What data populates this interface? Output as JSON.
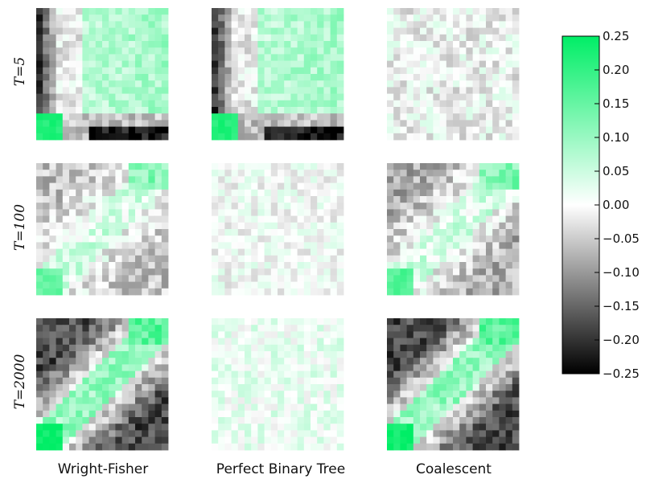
{
  "chart_data": {
    "type": "heatmap",
    "grid_size": 20,
    "row_labels": [
      "T=5",
      "T=100",
      "T=2000"
    ],
    "column_labels": [
      "Wright-Fisher",
      "Perfect Binary Tree",
      "Coalescent"
    ],
    "colorbar": {
      "min": -0.25,
      "max": 0.25,
      "ticks": [
        0.25,
        0.2,
        0.15,
        0.1,
        0.05,
        0.0,
        -0.05,
        -0.1,
        -0.15,
        -0.2,
        -0.25
      ],
      "tick_labels": [
        "0.25",
        "0.20",
        "0.15",
        "0.10",
        "0.05",
        "0.00",
        "−0.05",
        "−0.10",
        "−0.15",
        "−0.20",
        "−0.25"
      ],
      "colors": {
        "low": "#000000",
        "mid": "#ffffff",
        "high": "#00ee66"
      }
    },
    "panels": [
      {
        "row": "T=5",
        "column": "Wright-Fisher",
        "pattern": "block",
        "low_rows_left": -0.2,
        "top_right": 0.09,
        "bottom_left": 0.22,
        "bottom_right": -0.22,
        "noise": 0.04
      },
      {
        "row": "T=5",
        "column": "Perfect Binary Tree",
        "pattern": "block",
        "low_rows_left": -0.2,
        "top_right": 0.09,
        "bottom_left": 0.22,
        "bottom_right": -0.22,
        "noise": 0.04
      },
      {
        "row": "T=5",
        "column": "Coalescent",
        "pattern": "noise",
        "mean": -0.01,
        "noise": 0.05
      },
      {
        "row": "T=100",
        "column": "Wright-Fisher",
        "pattern": "diagonal",
        "diagonal": 0.04,
        "corner_bottom_left": 0.15,
        "corner_top_right": 0.12,
        "off_diagonal": -0.06,
        "noise": 0.05
      },
      {
        "row": "T=100",
        "column": "Perfect Binary Tree",
        "pattern": "noise",
        "mean": 0.0,
        "noise": 0.04
      },
      {
        "row": "T=100",
        "column": "Coalescent",
        "pattern": "diagonal",
        "diagonal": 0.04,
        "corner_bottom_left": 0.17,
        "corner_top_right": 0.12,
        "off_diagonal": -0.08,
        "noise": 0.05
      },
      {
        "row": "T=2000",
        "column": "Wright-Fisher",
        "pattern": "diagonal",
        "diagonal": 0.1,
        "corner_bottom_left": 0.24,
        "corner_top_right": 0.16,
        "off_diagonal": -0.18,
        "noise": 0.05
      },
      {
        "row": "T=2000",
        "column": "Perfect Binary Tree",
        "pattern": "noise",
        "mean": 0.02,
        "noise": 0.04
      },
      {
        "row": "T=2000",
        "column": "Coalescent",
        "pattern": "diagonal",
        "diagonal": 0.1,
        "corner_bottom_left": 0.24,
        "corner_top_right": 0.16,
        "off_diagonal": -0.18,
        "noise": 0.05
      }
    ]
  }
}
